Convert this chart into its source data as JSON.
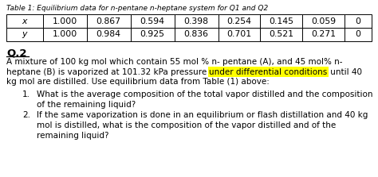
{
  "title": "Table 1: Equilibrium data for n-pentane n-heptane system for Q1 and Q2",
  "table_row1": [
    "x",
    "1.000",
    "0.867",
    "0.594",
    "0.398",
    "0.254",
    "0.145",
    "0.059",
    "0"
  ],
  "table_row2": [
    "y",
    "1.000",
    "0.984",
    "0.925",
    "0.836",
    "0.701",
    "0.521",
    "0.271",
    "0"
  ],
  "q2_heading": "Q.2",
  "line1": "A mixture of 100 kg mol which contain 55 mol % n- pentane (A), and 45 mol% n-",
  "line2_pre": "heptane (B) is vaporized at 101.32 kPa pressure ",
  "line2_hi": "under differential conditions",
  "line2_post": " until 40",
  "line3": "kg mol are distilled. Use equilibrium data from Table (1) above:",
  "item1_line1": "What is the average composition of the total vapor distilled and the composition",
  "item1_line2": "of the remaining liquid?",
  "item2_line1": "If the same vaporization is done in an equilibrium or flash distillation and 40 kg",
  "item2_line2": "mol is distilled, what is the composition of the vapor distilled and of the",
  "item2_line3": "remaining liquid?",
  "highlight_color": "#FFFF00",
  "bg_color": "#ffffff",
  "text_color": "#000000",
  "title_fs": 6.5,
  "body_fs": 7.5,
  "q2_fs": 9.5,
  "table_fs": 7.8
}
